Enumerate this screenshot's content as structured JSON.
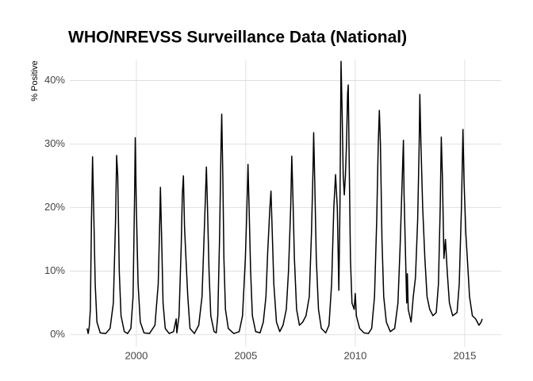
{
  "chart_data": {
    "type": "line",
    "title": "WHO/NREVSS Surveillance Data (National)",
    "y_label": "% Positive",
    "color": "#000000",
    "grid": true,
    "xlim": [
      1996.96,
      2016.67
    ],
    "xticks": [
      2000,
      2005,
      2010,
      2015
    ],
    "ylim": [
      -1.9,
      43.3
    ],
    "yticks": [
      {
        "value": 0,
        "label": "0%"
      },
      {
        "value": 10,
        "label": "10%"
      },
      {
        "value": 20,
        "label": "20%"
      },
      {
        "value": 30,
        "label": "30%"
      },
      {
        "value": 40,
        "label": "40%"
      }
    ],
    "x": [
      1997.75,
      1997.8,
      1997.85,
      1997.9,
      1997.95,
      1998.0,
      1998.05,
      1998.12,
      1998.2,
      1998.35,
      1998.6,
      1998.8,
      1998.95,
      1999.05,
      1999.1,
      1999.15,
      1999.22,
      1999.3,
      1999.45,
      1999.6,
      1999.75,
      1999.85,
      1999.92,
      1999.95,
      2000.0,
      2000.08,
      2000.18,
      2000.35,
      2000.6,
      2000.85,
      2001.0,
      2001.07,
      2001.1,
      2001.15,
      2001.22,
      2001.32,
      2001.5,
      2001.7,
      2001.82,
      2001.85,
      2001.95,
      2002.05,
      2002.1,
      2002.15,
      2002.2,
      2002.28,
      2002.35,
      2002.45,
      2002.65,
      2002.85,
      2003.0,
      2003.12,
      2003.2,
      2003.25,
      2003.32,
      2003.4,
      2003.55,
      2003.65,
      2003.72,
      2003.8,
      2003.87,
      2003.9,
      2003.95,
      2004.0,
      2004.07,
      2004.2,
      2004.45,
      2004.7,
      2004.85,
      2004.98,
      2005.05,
      2005.1,
      2005.15,
      2005.22,
      2005.3,
      2005.45,
      2005.65,
      2005.8,
      2005.92,
      2006.0,
      2006.1,
      2006.15,
      2006.2,
      2006.28,
      2006.4,
      2006.55,
      2006.7,
      2006.85,
      2006.95,
      2007.05,
      2007.1,
      2007.15,
      2007.22,
      2007.32,
      2007.45,
      2007.6,
      2007.75,
      2007.9,
      2008.0,
      2008.07,
      2008.1,
      2008.15,
      2008.22,
      2008.32,
      2008.45,
      2008.65,
      2008.8,
      2008.92,
      2009.02,
      2009.1,
      2009.18,
      2009.25,
      2009.3,
      2009.35,
      2009.4,
      2009.45,
      2009.5,
      2009.55,
      2009.6,
      2009.65,
      2009.68,
      2009.72,
      2009.78,
      2009.85,
      2009.95,
      2010.0,
      2010.05,
      2010.2,
      2010.4,
      2010.6,
      2010.75,
      2010.88,
      2010.98,
      2011.05,
      2011.1,
      2011.15,
      2011.22,
      2011.3,
      2011.42,
      2011.6,
      2011.8,
      2011.95,
      2012.05,
      2012.15,
      2012.2,
      2012.23,
      2012.3,
      2012.35,
      2012.38,
      2012.42,
      2012.55,
      2012.65,
      2012.75,
      2012.85,
      2012.92,
      2012.95,
      2013.0,
      2013.08,
      2013.18,
      2013.28,
      2013.4,
      2013.55,
      2013.7,
      2013.8,
      2013.88,
      2013.93,
      2013.98,
      2014.05,
      2014.12,
      2014.2,
      2014.3,
      2014.45,
      2014.65,
      2014.75,
      2014.85,
      2014.92,
      2014.97,
      2015.05,
      2015.12,
      2015.22,
      2015.35,
      2015.5,
      2015.65,
      2015.75,
      2015.8
    ],
    "values": [
      1.0,
      0.2,
      1.3,
      4,
      18,
      28,
      20,
      8,
      2,
      0.3,
      0.2,
      1,
      5,
      18,
      28.2,
      25,
      10,
      3,
      0.5,
      0.2,
      1,
      6,
      22,
      31,
      20,
      8,
      2,
      0.3,
      0.2,
      1.5,
      8,
      18,
      23.2,
      16,
      5,
      1,
      0.2,
      0.5,
      2.5,
      0.3,
      3,
      14,
      22,
      25,
      17,
      11,
      6,
      1,
      0.2,
      1.5,
      6,
      18,
      26.4,
      20,
      10,
      3,
      0.5,
      0.3,
      3,
      15,
      30,
      34.7,
      25,
      12,
      4,
      1,
      0.2,
      0.5,
      3,
      12,
      20,
      26.8,
      20,
      10,
      3,
      0.5,
      0.3,
      2,
      6,
      13,
      20,
      22.6,
      17,
      8,
      2,
      0.5,
      1.5,
      4,
      10,
      20,
      28.1,
      22,
      12,
      4,
      1.5,
      2,
      3,
      6,
      16,
      26,
      31.8,
      24,
      12,
      4,
      1,
      0.3,
      1.5,
      8,
      20,
      25.2,
      20,
      7,
      20,
      43,
      35,
      25,
      22,
      25,
      30,
      38,
      39.3,
      28,
      12,
      5,
      4,
      6.5,
      3,
      1,
      0.3,
      0.2,
      1,
      6,
      18,
      30,
      35.3,
      30,
      15,
      6,
      2,
      0.5,
      1,
      5,
      14,
      25,
      30.6,
      22,
      12,
      5,
      9.6,
      4,
      2,
      6,
      9,
      18,
      30,
      37.8,
      30,
      20,
      12,
      6,
      4,
      3,
      3.5,
      8,
      20,
      31.1,
      25,
      12,
      15,
      10,
      5,
      3,
      3.5,
      8,
      20,
      32.3,
      24,
      16,
      12,
      6,
      3,
      2.5,
      1.5,
      2,
      2.5
    ]
  }
}
